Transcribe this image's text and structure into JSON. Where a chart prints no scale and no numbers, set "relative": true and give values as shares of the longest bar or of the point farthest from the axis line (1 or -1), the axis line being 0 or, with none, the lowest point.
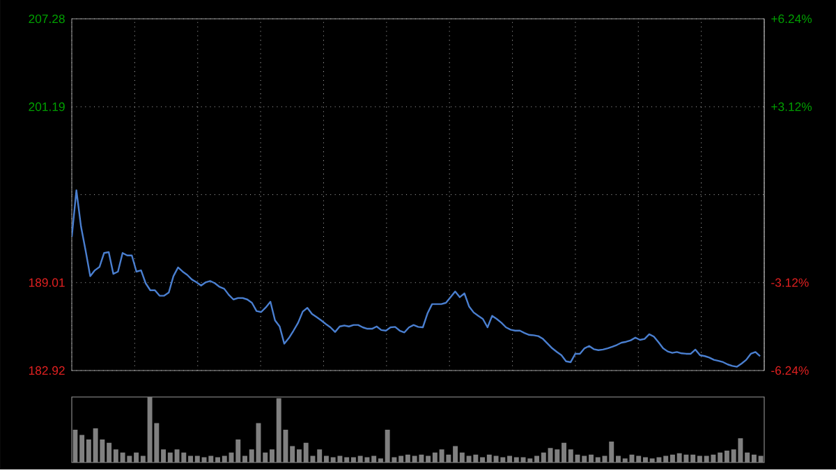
{
  "chart_data": [
    {
      "type": "line",
      "color": "#4a7fd0",
      "grid": true,
      "tick_labels": "y",
      "categories": [
        null,
        null,
        null,
        null,
        null,
        null,
        null,
        null,
        null,
        null,
        null,
        null,
        null,
        null,
        null,
        null,
        null,
        null,
        null,
        null,
        null,
        null,
        null,
        null,
        null,
        null,
        null,
        null,
        null,
        null,
        null,
        null,
        null,
        null,
        null,
        null,
        null,
        null,
        null,
        null,
        null,
        null,
        null,
        null,
        null,
        null,
        null,
        null,
        null,
        null,
        null,
        null,
        null,
        null,
        null,
        null,
        null,
        null,
        null,
        null,
        null,
        null,
        null,
        null,
        null,
        null,
        null,
        null,
        null,
        null,
        null,
        null,
        null,
        null,
        null,
        null,
        null,
        null,
        null,
        null,
        null,
        null,
        null,
        null,
        null,
        null,
        null,
        null,
        null,
        null,
        null,
        null,
        null,
        null,
        null,
        null,
        null,
        null,
        null,
        null,
        null,
        null,
        null,
        null,
        null,
        null,
        null,
        null,
        null,
        null,
        null,
        null,
        null,
        null,
        null,
        null,
        null,
        null,
        null,
        null,
        null,
        null,
        null,
        null,
        null,
        null,
        null,
        null,
        null,
        null,
        null,
        null,
        null,
        null,
        null,
        null,
        null,
        null,
        null,
        null,
        null,
        null,
        null,
        null,
        null,
        null,
        null,
        null,
        null,
        null
      ],
      "values": [
        192.18,
        195.4,
        192.89,
        191.22,
        189.45,
        189.86,
        190.09,
        191.06,
        191.12,
        189.61,
        189.77,
        191.06,
        190.89,
        190.89,
        189.77,
        189.86,
        188.96,
        188.48,
        188.48,
        188.1,
        188.1,
        188.32,
        189.45,
        190.06,
        189.77,
        189.54,
        189.22,
        189.03,
        188.8,
        189.03,
        189.12,
        188.96,
        188.71,
        188.58,
        188.16,
        187.84,
        187.94,
        187.94,
        187.84,
        187.61,
        187.04,
        186.97,
        187.29,
        187.68,
        186.39,
        185.97,
        184.78,
        185.17,
        185.68,
        186.23,
        187.0,
        187.26,
        186.84,
        186.62,
        186.39,
        186.14,
        185.91,
        185.59,
        185.97,
        186.04,
        185.97,
        186.07,
        186.07,
        185.91,
        185.81,
        185.81,
        185.97,
        185.72,
        185.68,
        185.91,
        185.94,
        185.68,
        185.56,
        185.91,
        186.07,
        185.94,
        185.91,
        186.87,
        187.52,
        187.52,
        187.52,
        187.61,
        188.0,
        188.39,
        188.0,
        188.26,
        187.36,
        186.94,
        186.71,
        186.49,
        185.91,
        186.71,
        186.49,
        186.23,
        185.91,
        185.75,
        185.68,
        185.68,
        185.52,
        185.39,
        185.36,
        185.3,
        185.11,
        184.78,
        184.46,
        184.21,
        183.98,
        183.56,
        183.5,
        184.08,
        184.08,
        184.46,
        184.62,
        184.4,
        184.33,
        184.37,
        184.46,
        184.56,
        184.69,
        184.85,
        184.91,
        185.01,
        185.2,
        185.04,
        185.11,
        185.43,
        185.27,
        184.88,
        184.46,
        184.24,
        184.14,
        184.2,
        184.11,
        184.08,
        184.08,
        184.37,
        183.98,
        183.92,
        183.82,
        183.66,
        183.59,
        183.5,
        183.34,
        183.24,
        183.18,
        183.4,
        183.66,
        184.08,
        184.2,
        183.91
      ],
      "ylim": [
        182.92,
        207.28
      ],
      "yticks": [
        182.92,
        189.01,
        {
          "value": 195.1,
          "label": null
        },
        201.19,
        207.28
      ],
      "y2lim": [
        -6.24,
        6.24
      ],
      "y2ticks": [
        {
          "value": -6.24,
          "label": "-6.24%"
        },
        {
          "value": -3.12,
          "label": "-3.12%"
        },
        {
          "value": 0,
          "label": null
        },
        {
          "value": 3.12,
          "label": "+3.12%"
        },
        {
          "value": 6.24,
          "label": "+6.24%"
        }
      ]
    },
    {
      "type": "bar",
      "relative": true,
      "color": "#808080",
      "categories": [
        null,
        null,
        null,
        null,
        null,
        null,
        null,
        null,
        null,
        null,
        null,
        null,
        null,
        null,
        null,
        null,
        null,
        null,
        null,
        null,
        null,
        null,
        null,
        null,
        null,
        null,
        null,
        null,
        null,
        null,
        null,
        null,
        null,
        null,
        null,
        null,
        null,
        null,
        null,
        null,
        null,
        null,
        null,
        null,
        null,
        null,
        null,
        null,
        null,
        null,
        null,
        null,
        null,
        null,
        null,
        null,
        null,
        null,
        null,
        null,
        null,
        null,
        null,
        null,
        null,
        null,
        null,
        null,
        null,
        null,
        null,
        null,
        null,
        null,
        null,
        null,
        null,
        null,
        null,
        null,
        null,
        null,
        null,
        null,
        null,
        null,
        null,
        null,
        null,
        null,
        null,
        null,
        null,
        null,
        null,
        null,
        null,
        null,
        null,
        null,
        null,
        null
      ],
      "values": [
        0.5,
        0.42,
        0.35,
        0.52,
        0.35,
        0.3,
        0.2,
        0.15,
        0.1,
        0.15,
        0.1,
        1.0,
        0.6,
        0.2,
        0.15,
        0.2,
        0.15,
        0.1,
        0.1,
        0.08,
        0.1,
        0.08,
        0.1,
        0.15,
        0.35,
        0.1,
        0.2,
        0.6,
        0.15,
        0.2,
        0.98,
        0.5,
        0.25,
        0.2,
        0.3,
        0.1,
        0.2,
        0.1,
        0.08,
        0.1,
        0.08,
        0.08,
        0.1,
        0.08,
        0.1,
        0.06,
        0.5,
        0.08,
        0.1,
        0.12,
        0.1,
        0.12,
        0.1,
        0.15,
        0.2,
        0.12,
        0.25,
        0.15,
        0.1,
        0.12,
        0.08,
        0.12,
        0.1,
        0.08,
        0.1,
        0.08,
        0.08,
        0.06,
        0.1,
        0.15,
        0.22,
        0.2,
        0.3,
        0.2,
        0.12,
        0.1,
        0.12,
        0.08,
        0.1,
        0.32,
        0.1,
        0.06,
        0.12,
        0.1,
        0.08,
        0.06,
        0.08,
        0.1,
        0.12,
        0.14,
        0.12,
        0.12,
        0.1,
        0.1,
        0.12,
        0.15,
        0.18,
        0.2,
        0.37,
        0.15,
        0.12,
        0.1
      ]
    }
  ]
}
